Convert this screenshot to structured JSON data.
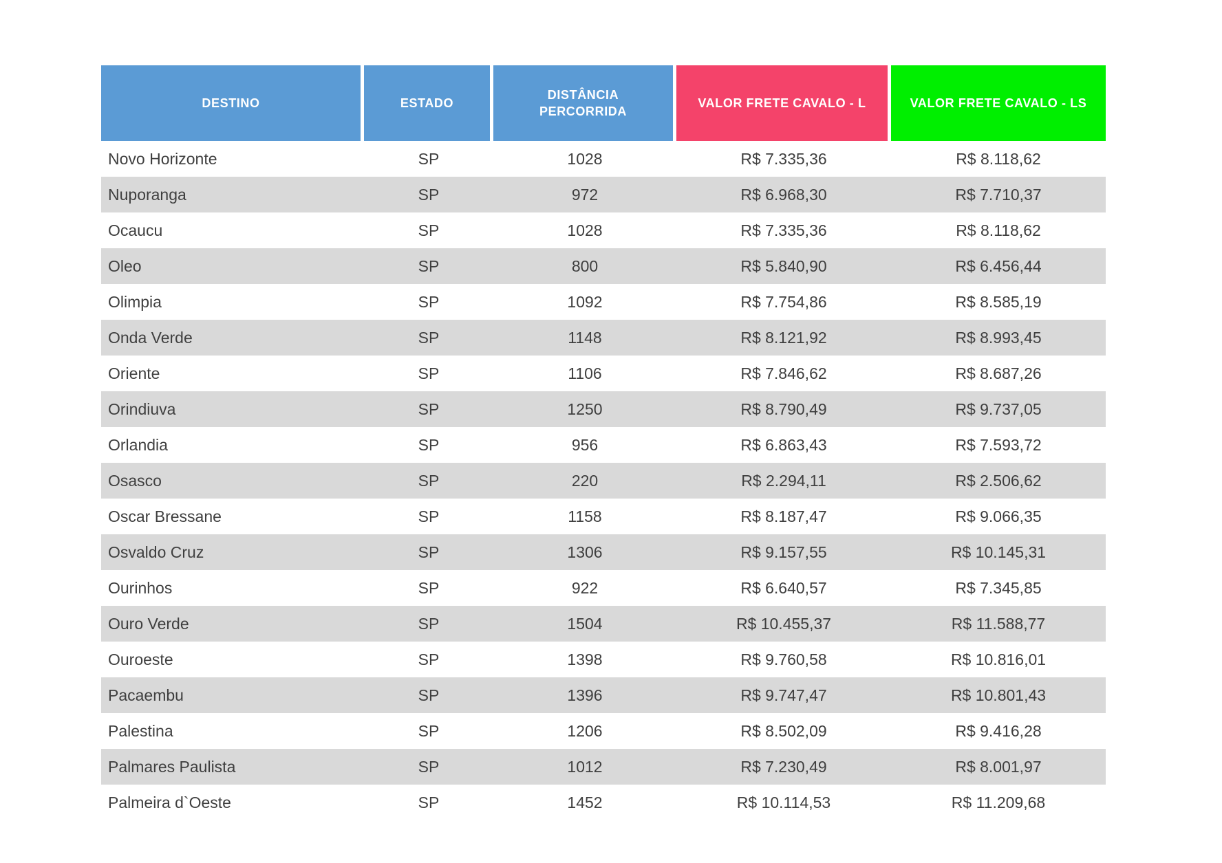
{
  "colors": {
    "header_blue": "#5B9BD5",
    "header_red": "#F4436A",
    "header_green": "#00EF00",
    "stripe_gray": "#D9D9D9",
    "body_text": "#3F3F3F",
    "header_text": "#FFFFFF"
  },
  "chart_data": {
    "type": "table",
    "columns": [
      {
        "label": "DESTINO",
        "color": "#5B9BD5"
      },
      {
        "label": "ESTADO",
        "color": "#5B9BD5"
      },
      {
        "label": "DISTÂNCIA PERCORRIDA",
        "color": "#5B9BD5"
      },
      {
        "label": "VALOR FRETE CAVALO - L",
        "color": "#F4436A"
      },
      {
        "label": "VALOR FRETE CAVALO - LS",
        "color": "#00EF00"
      }
    ],
    "rows": [
      [
        "Novo Horizonte",
        "SP",
        "1028",
        "R$ 7.335,36",
        "R$ 8.118,62"
      ],
      [
        "Nuporanga",
        "SP",
        "972",
        "R$ 6.968,30",
        "R$ 7.710,37"
      ],
      [
        "Ocaucu",
        "SP",
        "1028",
        "R$ 7.335,36",
        "R$ 8.118,62"
      ],
      [
        "Oleo",
        "SP",
        "800",
        "R$ 5.840,90",
        "R$ 6.456,44"
      ],
      [
        "Olimpia",
        "SP",
        "1092",
        "R$ 7.754,86",
        "R$ 8.585,19"
      ],
      [
        "Onda Verde",
        "SP",
        "1148",
        "R$ 8.121,92",
        "R$ 8.993,45"
      ],
      [
        "Oriente",
        "SP",
        "1106",
        "R$ 7.846,62",
        "R$ 8.687,26"
      ],
      [
        "Orindiuva",
        "SP",
        "1250",
        "R$ 8.790,49",
        "R$ 9.737,05"
      ],
      [
        "Orlandia",
        "SP",
        "956",
        "R$ 6.863,43",
        "R$ 7.593,72"
      ],
      [
        "Osasco",
        "SP",
        "220",
        "R$ 2.294,11",
        "R$ 2.506,62"
      ],
      [
        "Oscar Bressane",
        "SP",
        "1158",
        "R$ 8.187,47",
        "R$ 9.066,35"
      ],
      [
        "Osvaldo Cruz",
        "SP",
        "1306",
        "R$ 9.157,55",
        "R$ 10.145,31"
      ],
      [
        "Ourinhos",
        "SP",
        "922",
        "R$ 6.640,57",
        "R$ 7.345,85"
      ],
      [
        "Ouro Verde",
        "SP",
        "1504",
        "R$ 10.455,37",
        "R$ 11.588,77"
      ],
      [
        "Ouroeste",
        "SP",
        "1398",
        "R$ 9.760,58",
        "R$ 10.816,01"
      ],
      [
        "Pacaembu",
        "SP",
        "1396",
        "R$ 9.747,47",
        "R$ 10.801,43"
      ],
      [
        "Palestina",
        "SP",
        "1206",
        "R$ 8.502,09",
        "R$ 9.416,28"
      ],
      [
        "Palmares Paulista",
        "SP",
        "1012",
        "R$ 7.230,49",
        "R$ 8.001,97"
      ],
      [
        "Palmeira d`Oeste",
        "SP",
        "1452",
        "R$ 10.114,53",
        "R$ 11.209,68"
      ]
    ]
  }
}
